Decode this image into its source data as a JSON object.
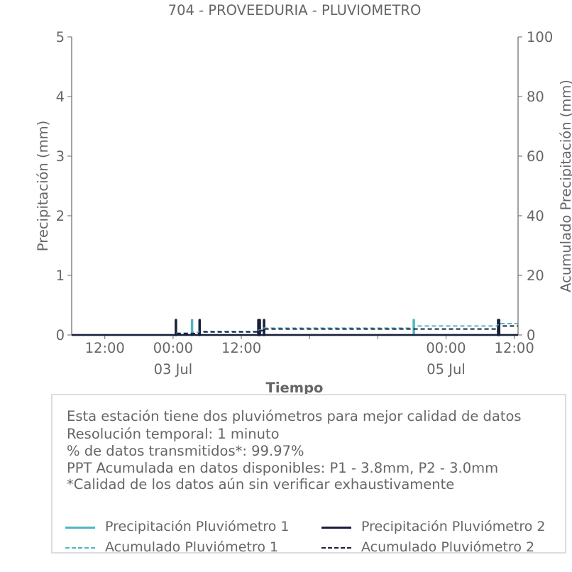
{
  "chart_data": {
    "type": "line",
    "title": "704 - PROVEEDURIA - PLUVIOMETRO",
    "xlabel": "Tiempo",
    "ylabel": "Precipitación (mm)",
    "ylabel_right": "Acumulado Precipitación (mm)",
    "x_ticks": [
      {
        "t": "2023-07-02T12:00",
        "label": "12:00",
        "sublabel": ""
      },
      {
        "t": "2023-07-03T00:00",
        "label": "00:00",
        "sublabel": "03 Jul"
      },
      {
        "t": "2023-07-03T12:00",
        "label": "12:00",
        "sublabel": ""
      },
      {
        "t": "2023-07-04T00:00",
        "label": "",
        "sublabel": ""
      },
      {
        "t": "2023-07-04T12:00",
        "label": "",
        "sublabel": ""
      },
      {
        "t": "2023-07-05T00:00",
        "label": "00:00",
        "sublabel": "05 Jul"
      },
      {
        "t": "2023-07-05T12:00",
        "label": "12:00",
        "sublabel": ""
      }
    ],
    "xlim": [
      "2023-07-02T06:10",
      "2023-07-05T12:40"
    ],
    "ylim": [
      0,
      5
    ],
    "y_ticks": [
      0,
      1,
      2,
      3,
      4,
      5
    ],
    "ylim_right": [
      0,
      100
    ],
    "y_ticks_right": [
      0,
      20,
      40,
      60,
      80,
      100
    ],
    "grid": false,
    "series": [
      {
        "name": "Precipitación Pluviómetro 1",
        "axis": "left",
        "style": "solid",
        "color": "#4fb6c4",
        "events": [
          {
            "t": "2023-07-03T03:20",
            "y": 0.25
          },
          {
            "t": "2023-07-04T18:20",
            "y": 0.25
          }
        ]
      },
      {
        "name": "Precipitación Pluviómetro 2",
        "axis": "left",
        "style": "solid",
        "color": "#1b1f3b",
        "events": [
          {
            "t": "2023-07-03T00:30",
            "y": 0.25
          },
          {
            "t": "2023-07-03T04:40",
            "y": 0.25
          },
          {
            "t": "2023-07-03T15:00",
            "y": 0.25
          },
          {
            "t": "2023-07-03T15:15",
            "y": 0.25
          },
          {
            "t": "2023-07-03T16:00",
            "y": 0.25
          },
          {
            "t": "2023-07-05T09:10",
            "y": 0.25
          },
          {
            "t": "2023-07-05T09:20",
            "y": 0.25
          }
        ]
      },
      {
        "name": "Acumulado Pluviómetro 1",
        "axis": "right",
        "style": "dashed",
        "color": "#4fb6c4",
        "points": [
          {
            "t": "2023-07-02T06:10",
            "y": 0.0
          },
          {
            "t": "2023-07-03T00:30",
            "y": 0.6
          },
          {
            "t": "2023-07-03T03:20",
            "y": 0.9
          },
          {
            "t": "2023-07-03T04:40",
            "y": 1.2
          },
          {
            "t": "2023-07-03T15:00",
            "y": 1.6
          },
          {
            "t": "2023-07-03T16:00",
            "y": 2.3
          },
          {
            "t": "2023-07-04T18:20",
            "y": 3.0
          },
          {
            "t": "2023-07-05T09:10",
            "y": 3.8
          },
          {
            "t": "2023-07-05T12:40",
            "y": 3.8
          }
        ]
      },
      {
        "name": "Acumulado Pluviómetro 2",
        "axis": "right",
        "style": "dashed",
        "color": "#1b1f3b",
        "points": [
          {
            "t": "2023-07-02T06:10",
            "y": 0.0
          },
          {
            "t": "2023-07-03T00:30",
            "y": 0.5
          },
          {
            "t": "2023-07-03T04:40",
            "y": 1.0
          },
          {
            "t": "2023-07-03T15:00",
            "y": 1.4
          },
          {
            "t": "2023-07-03T16:00",
            "y": 2.0
          },
          {
            "t": "2023-07-05T09:10",
            "y": 3.0
          },
          {
            "t": "2023-07-05T12:40",
            "y": 3.0
          }
        ]
      }
    ]
  },
  "info": {
    "lines": [
      "Esta estación tiene dos pluviómetros para mejor calidad de datos",
      "Resolución temporal: 1 minuto",
      "% de datos transmitidos*: 99.97%",
      "PPT Acumulada en datos disponibles: P1 - 3.8mm, P2 - 3.0mm",
      "*Calidad de los datos aún sin verificar exhaustivamente"
    ]
  },
  "legend": {
    "items": [
      {
        "label": "Precipitación Pluviómetro 1",
        "color": "#4fb6c4",
        "style": "solid"
      },
      {
        "label": "Precipitación Pluviómetro 2",
        "color": "#1b1f3b",
        "style": "solid"
      },
      {
        "label": "Acumulado Pluviómetro 1",
        "color": "#4fb6c4",
        "style": "dashed"
      },
      {
        "label": "Acumulado Pluviómetro 2",
        "color": "#1b1f3b",
        "style": "dashed"
      }
    ]
  }
}
